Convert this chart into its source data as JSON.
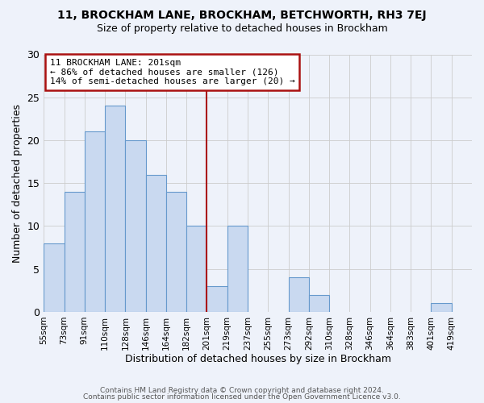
{
  "title": "11, BROCKHAM LANE, BROCKHAM, BETCHWORTH, RH3 7EJ",
  "subtitle": "Size of property relative to detached houses in Brockham",
  "xlabel": "Distribution of detached houses by size in Brockham",
  "ylabel": "Number of detached properties",
  "bin_labels": [
    "55sqm",
    "73sqm",
    "91sqm",
    "110sqm",
    "128sqm",
    "146sqm",
    "164sqm",
    "182sqm",
    "201sqm",
    "219sqm",
    "237sqm",
    "255sqm",
    "273sqm",
    "292sqm",
    "310sqm",
    "328sqm",
    "346sqm",
    "364sqm",
    "383sqm",
    "401sqm",
    "419sqm"
  ],
  "counts": [
    8,
    14,
    21,
    24,
    20,
    16,
    14,
    10,
    3,
    10,
    0,
    0,
    4,
    2,
    0,
    0,
    0,
    0,
    0,
    1,
    0
  ],
  "bar_facecolor": "#c9d9f0",
  "bar_edgecolor": "#6699cc",
  "grid_color": "#cccccc",
  "vline_index": 8,
  "vline_color": "#aa1111",
  "annotation_text": "11 BROCKHAM LANE: 201sqm\n← 86% of detached houses are smaller (126)\n14% of semi-detached houses are larger (20) →",
  "annotation_box_edgecolor": "#aa1111",
  "ylim": [
    0,
    30
  ],
  "yticks": [
    0,
    5,
    10,
    15,
    20,
    25,
    30
  ],
  "footer_line1": "Contains HM Land Registry data © Crown copyright and database right 2024.",
  "footer_line2": "Contains public sector information licensed under the Open Government Licence v3.0.",
  "background_color": "#eef2fa"
}
